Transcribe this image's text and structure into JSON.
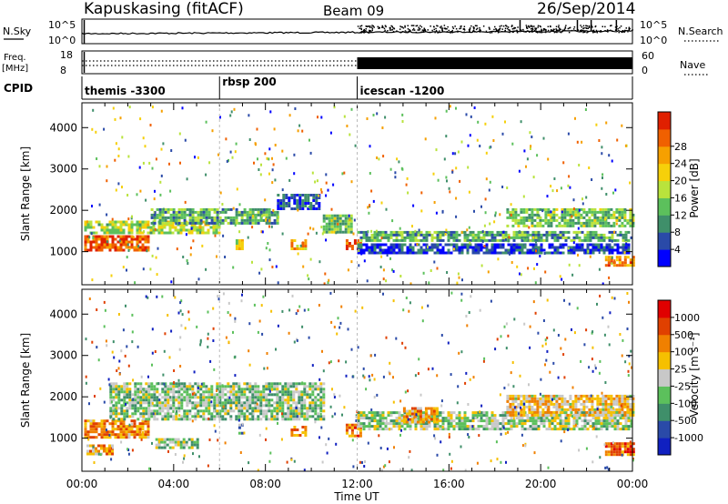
{
  "header": {
    "station": "Kapuskasing (fitACF)",
    "beam": "Beam 09",
    "date": "26/Sep/2014"
  },
  "nsky_panel": {
    "left_label": "N.Sky",
    "right_label": "N.Search",
    "ticks_left": [
      "10^5",
      "10^0"
    ],
    "ticks_right": [
      "10^5",
      "10^0"
    ]
  },
  "freq_panel": {
    "left_label_1": "Freq.",
    "left_label_2": "[MHz]",
    "right_label": "Nave",
    "ticks_left": [
      "18",
      "8"
    ],
    "ticks_right": [
      "60",
      "0"
    ]
  },
  "cpid": {
    "label": "CPID",
    "segments": [
      {
        "label": "themis -3300",
        "start_hour": 0,
        "end_hour": 6
      },
      {
        "label": "rbsp 200",
        "start_hour": 6,
        "end_hour": 12
      },
      {
        "label": "icescan -1200",
        "start_hour": 12,
        "end_hour": 24
      }
    ]
  },
  "x_axis": {
    "label": "Time UT",
    "ticks": [
      "00:00",
      "04:00",
      "08:00",
      "12:00",
      "16:00",
      "20:00",
      "00:00"
    ],
    "range_hours": [
      0,
      24
    ]
  },
  "power_panel": {
    "ylabel": "Slant Range [km]",
    "yticks": [
      "1000",
      "2000",
      "3000",
      "4000"
    ],
    "ylim_km": [
      200,
      4600
    ],
    "colorbar_label": "Power [dB]",
    "colorbar_ticks": [
      "4",
      "8",
      "12",
      "16",
      "20",
      "24",
      "28"
    ],
    "colors": [
      "#0000ff",
      "#2a4aa8",
      "#3f8f6a",
      "#5cc05c",
      "#b9e33c",
      "#f6d00a",
      "#f6a000",
      "#f06000",
      "#e02000"
    ]
  },
  "velocity_panel": {
    "ylabel": "Slant Range [km]",
    "yticks": [
      "1000",
      "2000",
      "3000",
      "4000"
    ],
    "ylim_km": [
      200,
      4600
    ],
    "colorbar_label": "Velocity [m s⁻¹]",
    "colorbar_ticks": [
      "1000",
      "500",
      "100",
      "25",
      "-25",
      "-100",
      "-500",
      "-1000"
    ],
    "colors": [
      "#1020c0",
      "#2a4aa8",
      "#3f8f6a",
      "#5cc05c",
      "#c8c8c8",
      "#f6c000",
      "#f08000",
      "#e04000",
      "#e00000"
    ]
  },
  "chart_data": {
    "type": "heatmap",
    "x_units": "hours UT",
    "y_units": "km",
    "power_regions": [
      {
        "t0": 0.1,
        "t1": 2.9,
        "r0": 1050,
        "r1": 1400,
        "level": 0.85
      },
      {
        "t0": 0.1,
        "t1": 6.0,
        "r0": 1450,
        "r1": 1750,
        "level": 0.5
      },
      {
        "t0": 3.0,
        "t1": 8.5,
        "r0": 1700,
        "r1": 2050,
        "level": 0.35
      },
      {
        "t0": 8.5,
        "t1": 10.3,
        "r0": 2050,
        "r1": 2400,
        "level": 0.15
      },
      {
        "t0": 10.5,
        "t1": 11.8,
        "r0": 1500,
        "r1": 1900,
        "level": 0.4
      },
      {
        "t0": 11.5,
        "t1": 12.2,
        "r0": 1050,
        "r1": 1300,
        "level": 0.85
      },
      {
        "t0": 9.1,
        "t1": 9.7,
        "r0": 1050,
        "r1": 1300,
        "level": 0.7
      },
      {
        "t0": 6.7,
        "t1": 7.0,
        "r0": 1100,
        "r1": 1300,
        "level": 0.55
      },
      {
        "t0": 12.0,
        "t1": 24.0,
        "r0": 1300,
        "r1": 1500,
        "level": 0.35
      },
      {
        "t0": 18.5,
        "t1": 24.0,
        "r0": 1600,
        "r1": 2050,
        "level": 0.4
      },
      {
        "t0": 12.0,
        "t1": 23.8,
        "r0": 950,
        "r1": 1200,
        "level": 0.15
      },
      {
        "t0": 22.8,
        "t1": 24.0,
        "r0": 650,
        "r1": 900,
        "level": 0.75
      }
    ],
    "velocity_regions": [
      {
        "t0": 0.1,
        "t1": 2.9,
        "r0": 1050,
        "r1": 1450,
        "level": 0.72
      },
      {
        "t0": 0.2,
        "t1": 1.3,
        "r0": 600,
        "r1": 850,
        "level": 0.65
      },
      {
        "t0": 1.2,
        "t1": 10.5,
        "r0": 1450,
        "r1": 2350,
        "level": 0.42
      },
      {
        "t0": 3.2,
        "t1": 5.0,
        "r0": 800,
        "r1": 1000,
        "level": 0.42
      },
      {
        "t0": 9.1,
        "t1": 9.7,
        "r0": 1050,
        "r1": 1300,
        "level": 0.7
      },
      {
        "t0": 11.5,
        "t1": 12.2,
        "r0": 1050,
        "r1": 1350,
        "level": 0.75
      },
      {
        "t0": 12.0,
        "t1": 24.0,
        "r0": 1200,
        "r1": 1650,
        "level": 0.45
      },
      {
        "t0": 14.0,
        "t1": 15.5,
        "r0": 1400,
        "r1": 1750,
        "level": 0.65
      },
      {
        "t0": 18.5,
        "t1": 24.0,
        "r0": 1550,
        "r1": 2050,
        "level": 0.6
      },
      {
        "t0": 22.8,
        "t1": 24.0,
        "r0": 600,
        "r1": 900,
        "level": 0.8
      },
      {
        "t0": 6.7,
        "t1": 7.0,
        "r0": 1100,
        "r1": 1350,
        "level": 0.3
      }
    ],
    "nave_high_from_hour": 12
  }
}
